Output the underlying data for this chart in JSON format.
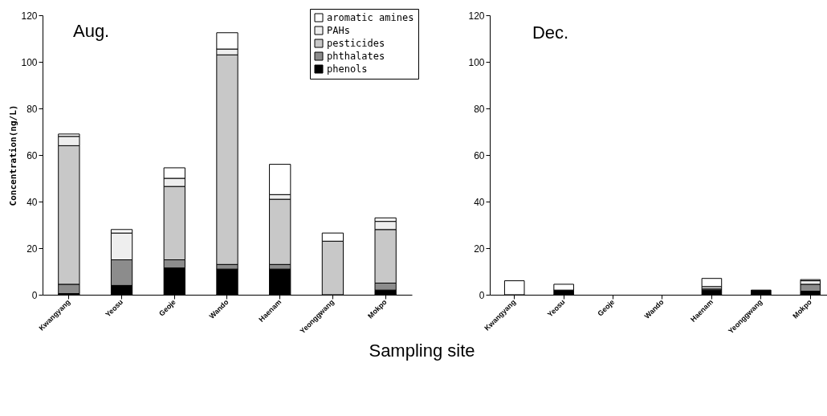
{
  "chart_data": [
    {
      "type": "bar",
      "title": "Aug.",
      "xlabel": "Sampling site",
      "ylabel": "Concentration(ng/L)",
      "stacked": true,
      "legend": "top right",
      "categories": [
        "Kwangyang",
        "Yeosu",
        "Geoje",
        "Wando",
        "Haenam",
        "Yeonggwang",
        "Mokpo"
      ],
      "ylim": [
        0,
        120
      ],
      "yticks": [
        0,
        20,
        40,
        60,
        80,
        100,
        120
      ],
      "series": [
        {
          "name": "phenols",
          "color": "#000000",
          "values": [
            0.5,
            4,
            11.5,
            11,
            11,
            0,
            2
          ]
        },
        {
          "name": "phthalates",
          "color": "#8c8c8c",
          "values": [
            4,
            11,
            3.5,
            2,
            2,
            0,
            3
          ]
        },
        {
          "name": "pesticides",
          "color": "#c8c8c8",
          "values": [
            59.5,
            0,
            31.5,
            90,
            28,
            23,
            23
          ]
        },
        {
          "name": "PAHs",
          "color": "#eeeeee",
          "values": [
            4,
            11.5,
            3.5,
            2.5,
            2,
            0,
            3.5
          ]
        },
        {
          "name": "aromatic amines",
          "color": "#ffffff",
          "values": [
            1,
            1.5,
            4.5,
            7,
            13,
            3.5,
            1.5
          ]
        }
      ]
    },
    {
      "type": "bar",
      "title": "Dec.",
      "stacked": true,
      "categories": [
        "Kwangyang",
        "Yeosu",
        "Geoje",
        "Wando",
        "Haenam",
        "Yeonggwang",
        "Mokpo"
      ],
      "ylim": [
        0,
        120
      ],
      "yticks": [
        0,
        20,
        40,
        60,
        80,
        100,
        120
      ],
      "series": [
        {
          "color": "#000000",
          "values": [
            0,
            2,
            0,
            0,
            2,
            2,
            1.5
          ]
        },
        {
          "color": "#8c8c8c",
          "values": [
            0,
            0,
            0,
            0,
            0.5,
            0,
            3
          ]
        },
        {
          "color": "#c8c8c8",
          "values": [
            0,
            0,
            0,
            0,
            null,
            0,
            0
          ]
        },
        {
          "color": "#eeeeee",
          "values": [
            0,
            0,
            0,
            0,
            1,
            0,
            1.5
          ]
        },
        {
          "color": "#ffffff",
          "values": [
            6,
            2.5,
            0,
            0,
            3.5,
            0,
            0.5
          ]
        }
      ]
    }
  ]
}
